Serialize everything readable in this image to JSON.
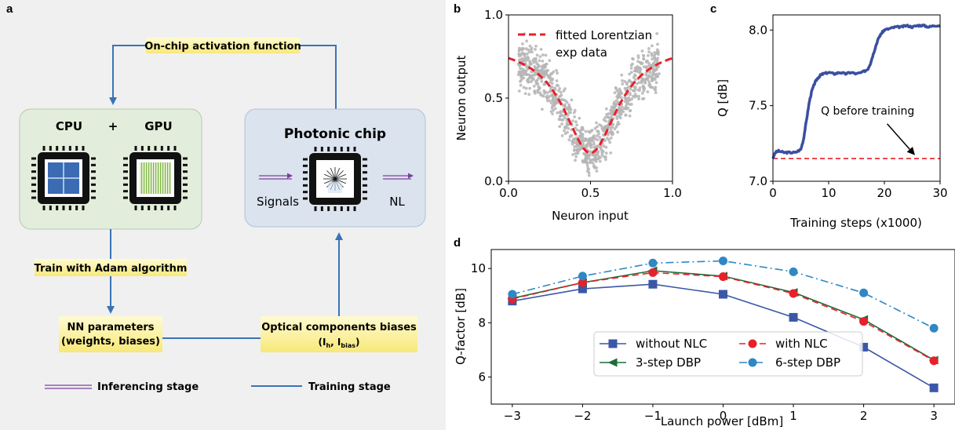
{
  "panel_a": {
    "letter": "a",
    "activation_label": "On-chip activation function",
    "cpu_label": "CPU",
    "plus": "+",
    "gpu_label": "GPU",
    "photonic_label": "Photonic chip",
    "signals_label": "Signals",
    "nl_label": "NL",
    "train_label": "Train with Adam algorithm",
    "nn_params_line1": "NN parameters",
    "nn_params_line2": "(weights, biases)",
    "optical_line1": "Optical components biases",
    "optical_line2_open": "(I",
    "optical_sub_h": "h",
    "optical_comma": ", I",
    "optical_sub_bias": "bias",
    "optical_close": ")",
    "legend_inferencing": "Inferencing stage",
    "legend_training": "Training stage",
    "colors": {
      "panel_bg": "#f0f0f0",
      "cpu_box": "#e3eddb",
      "photonic_box": "#dbe3ee",
      "label_bg": "#fdf5a5",
      "arrow": "#3a73b5",
      "inferencing": "#7b3fa0"
    }
  },
  "panel_b": {
    "letter": "b",
    "chart_data": {
      "type": "scatter",
      "xlabel": "Neuron input",
      "ylabel": "Neuron output",
      "xlim": [
        0.0,
        1.0
      ],
      "ylim": [
        0.0,
        1.0
      ],
      "xticks": [
        "0.0",
        "0.5",
        "1.0"
      ],
      "yticks": [
        "0.0",
        "0.5",
        "1.0"
      ],
      "legend": [
        "fitted Lorentzian",
        "exp data"
      ],
      "legend_position": "top",
      "fit": {
        "name": "fitted Lorentzian",
        "color": "#e8202a",
        "style": "dashed",
        "center": 0.5,
        "min": 0.17,
        "edge": 0.74
      },
      "scatter_color": "#b5b5b5"
    }
  },
  "panel_c": {
    "letter": "c",
    "chart_data": {
      "type": "line",
      "xlabel": "Training steps (x1000)",
      "ylabel": "Q [dB]",
      "xlim": [
        0,
        30
      ],
      "ylim": [
        7.0,
        8.1
      ],
      "xticks": [
        "0",
        "10",
        "20",
        "30"
      ],
      "yticks": [
        "7.0",
        "7.5",
        "8.0"
      ],
      "series": [
        {
          "color": "#3a4fa0",
          "x": [
            0,
            0.4,
            1,
            2,
            3,
            4,
            5,
            5.5,
            6,
            6.5,
            7,
            7.5,
            8,
            8.5,
            9,
            10,
            11,
            12,
            13,
            14,
            15,
            16,
            17,
            17.5,
            18,
            18.5,
            19,
            19.5,
            20,
            21,
            22,
            23,
            24,
            25,
            26,
            27,
            28,
            29,
            30
          ],
          "y": [
            7.15,
            7.19,
            7.2,
            7.19,
            7.19,
            7.19,
            7.21,
            7.28,
            7.4,
            7.52,
            7.6,
            7.65,
            7.68,
            7.7,
            7.71,
            7.72,
            7.71,
            7.72,
            7.71,
            7.72,
            7.71,
            7.72,
            7.74,
            7.78,
            7.84,
            7.9,
            7.95,
            7.98,
            8.0,
            8.01,
            8.02,
            8.02,
            8.03,
            8.02,
            8.03,
            8.03,
            8.02,
            8.03,
            8.03
          ]
        }
      ],
      "reference": {
        "y": 7.15,
        "color": "#e8202a",
        "style": "dashed"
      },
      "annotation": {
        "text": "Q before training",
        "x": 17,
        "y": 7.44,
        "arrow_to_x": 25.3,
        "arrow_to_y": 7.18
      }
    }
  },
  "panel_d": {
    "letter": "d",
    "chart_data": {
      "type": "line",
      "xlabel": "Launch power [dBm]",
      "ylabel": "Q-factor [dB]",
      "xlim": [
        -3.3,
        3.3
      ],
      "ylim": [
        5.0,
        10.7
      ],
      "categories": [
        -3,
        -2,
        -1,
        0,
        1,
        2,
        3
      ],
      "xtick_labels": [
        "−3",
        "−2",
        "−1",
        "0",
        "1",
        "2",
        "3"
      ],
      "yticks": [
        "6",
        "8",
        "10"
      ],
      "legend_position": "lower center",
      "series": [
        {
          "name": "without NLC",
          "color": "#3b57a7",
          "marker": "square",
          "style": "solid",
          "values": [
            8.8,
            9.25,
            9.42,
            9.05,
            8.2,
            7.1,
            5.6
          ]
        },
        {
          "name": "3-step DBP",
          "color": "#1e6b3a",
          "marker": "triangle-left",
          "style": "solid",
          "values": [
            8.9,
            9.48,
            9.92,
            9.72,
            9.12,
            8.12,
            6.62
          ]
        },
        {
          "name": "with NLC",
          "color": "#e8202a",
          "marker": "circle",
          "style": "dashed",
          "values": [
            8.88,
            9.48,
            9.85,
            9.7,
            9.08,
            8.05,
            6.6
          ]
        },
        {
          "name": "6-step DBP",
          "color": "#2f87c4",
          "marker": "circle",
          "style": "dashdot",
          "values": [
            9.05,
            9.72,
            10.2,
            10.28,
            9.88,
            9.1,
            7.8
          ]
        }
      ]
    }
  }
}
